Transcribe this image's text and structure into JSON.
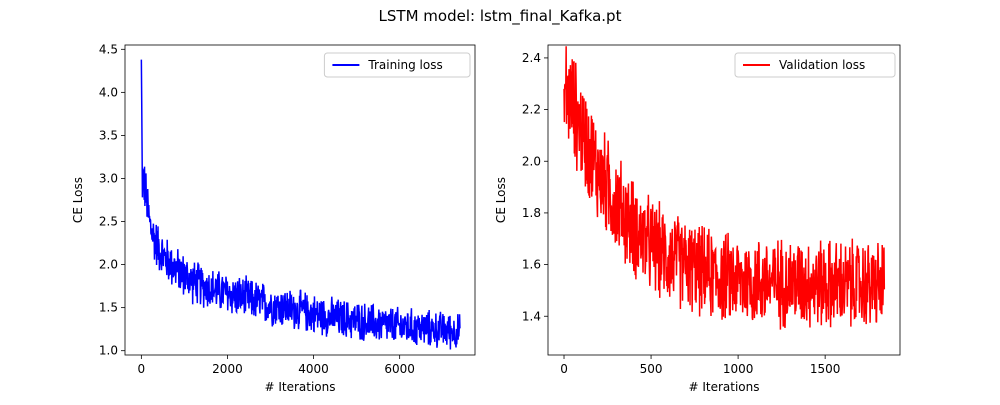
{
  "figure": {
    "title": "LSTM model: lstm_final_Kafka.pt"
  },
  "chart_data": [
    {
      "type": "line",
      "title": "",
      "xlabel": "# Iterations",
      "ylabel": "CE Loss",
      "xlim": [
        -380,
        7750
      ],
      "ylim": [
        0.95,
        4.55
      ],
      "xticks": [
        0,
        2000,
        4000,
        6000
      ],
      "xtick_labels": [
        "0",
        "2000",
        "4000",
        "6000"
      ],
      "yticks": [
        1.0,
        1.5,
        2.0,
        2.5,
        3.0,
        3.5,
        4.0,
        4.5
      ],
      "ytick_labels": [
        "1.0",
        "1.5",
        "2.0",
        "2.5",
        "3.0",
        "3.5",
        "4.0",
        "4.5"
      ],
      "grid": false,
      "legend_position": "top-right",
      "series": [
        {
          "name": "Training loss",
          "color": "#0000ff",
          "x_max": 7400,
          "points": [
            [
              0,
              4.38
            ],
            [
              20,
              3.0
            ],
            [
              60,
              2.95
            ],
            [
              120,
              2.75
            ],
            [
              200,
              2.45
            ],
            [
              300,
              2.3
            ],
            [
              500,
              2.1
            ],
            [
              800,
              1.95
            ],
            [
              1200,
              1.8
            ],
            [
              1600,
              1.72
            ],
            [
              2000,
              1.66
            ],
            [
              2500,
              1.6
            ],
            [
              3000,
              1.53
            ],
            [
              3500,
              1.48
            ],
            [
              4000,
              1.43
            ],
            [
              4500,
              1.38
            ],
            [
              5000,
              1.35
            ],
            [
              5500,
              1.31
            ],
            [
              6000,
              1.28
            ],
            [
              6500,
              1.26
            ],
            [
              7000,
              1.24
            ],
            [
              7400,
              1.22
            ]
          ],
          "noise_amplitude": [
            [
              0,
              0.35
            ],
            [
              500,
              0.3
            ],
            [
              2000,
              0.28
            ],
            [
              5000,
              0.26
            ],
            [
              7400,
              0.24
            ]
          ]
        }
      ]
    },
    {
      "type": "line",
      "title": "",
      "xlabel": "# Iterations",
      "ylabel": "CE Loss",
      "xlim": [
        -92,
        1930
      ],
      "ylim": [
        1.25,
        2.45
      ],
      "xticks": [
        0,
        500,
        1000,
        1500
      ],
      "xtick_labels": [
        "0",
        "500",
        "1000",
        "1500"
      ],
      "yticks": [
        1.4,
        1.6,
        1.8,
        2.0,
        2.2,
        2.4
      ],
      "ytick_labels": [
        "1.4",
        "1.6",
        "1.8",
        "2.0",
        "2.2",
        "2.4"
      ],
      "grid": false,
      "legend_position": "top-right",
      "series": [
        {
          "name": "Validation loss",
          "color": "#ff0000",
          "x_max": 1840,
          "points": [
            [
              0,
              2.28
            ],
            [
              50,
              2.22
            ],
            [
              100,
              2.12
            ],
            [
              200,
              1.95
            ],
            [
              300,
              1.84
            ],
            [
              400,
              1.74
            ],
            [
              500,
              1.67
            ],
            [
              600,
              1.63
            ],
            [
              700,
              1.6
            ],
            [
              800,
              1.57
            ],
            [
              900,
              1.55
            ],
            [
              1000,
              1.54
            ],
            [
              1200,
              1.53
            ],
            [
              1400,
              1.53
            ],
            [
              1600,
              1.52
            ],
            [
              1840,
              1.52
            ]
          ],
          "noise_amplitude": [
            [
              0,
              0.24
            ],
            [
              300,
              0.22
            ],
            [
              800,
              0.2
            ],
            [
              1840,
              0.2
            ]
          ]
        }
      ]
    }
  ]
}
